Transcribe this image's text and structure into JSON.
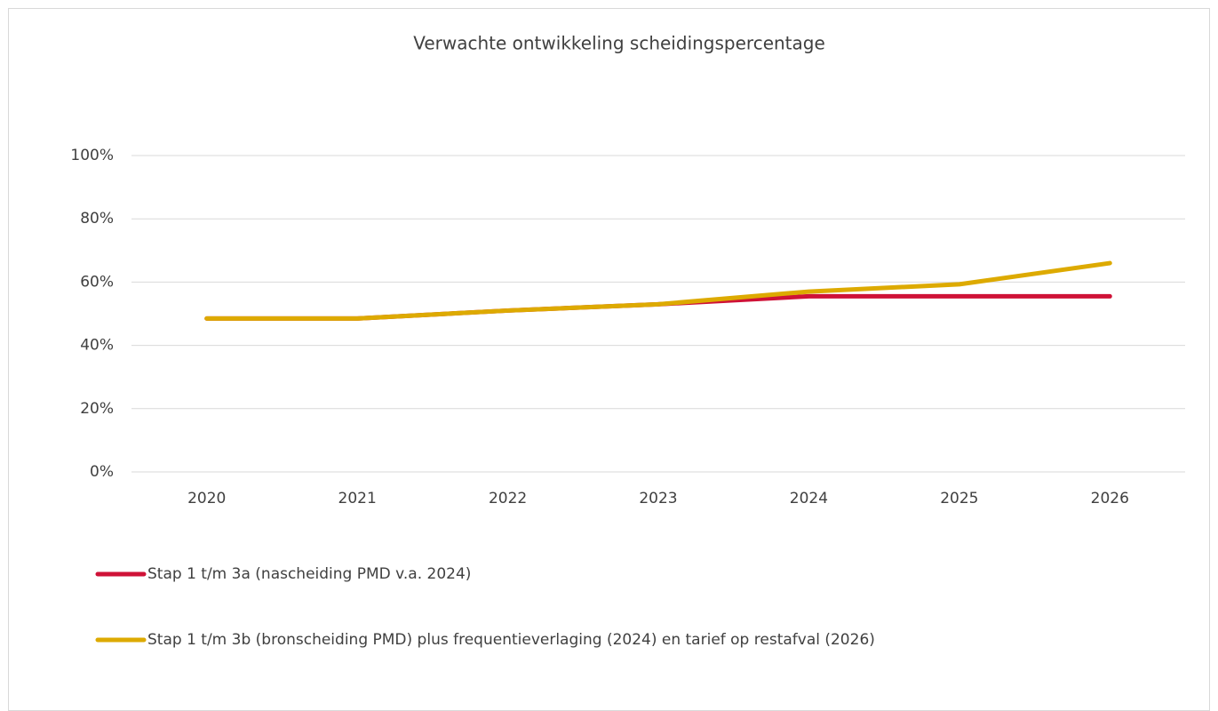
{
  "chart_data": {
    "type": "line",
    "title": "Verwachte ontwikkeling scheidingspercentage",
    "categories": [
      "2020",
      "2021",
      "2022",
      "2023",
      "2024",
      "2025",
      "2026"
    ],
    "series": [
      {
        "name": "Stap 1 t/m 3a (nascheiding PMD v.a. 2024)",
        "color": "#cf1237",
        "values": [
          48.5,
          48.5,
          51,
          53,
          55.5,
          55.5,
          55.5
        ]
      },
      {
        "name": "Stap 1 t/m 3b (bronscheiding PMD) plus frequentieverlaging (2024) en tarief op restafval (2026)",
        "color": "#ddaa00",
        "values": [
          48.5,
          48.5,
          51,
          53,
          57,
          59.3,
          66
        ]
      }
    ],
    "ylim": [
      0,
      100
    ],
    "yticks": [
      {
        "value": 0,
        "label": "0%"
      },
      {
        "value": 20,
        "label": "20%"
      },
      {
        "value": 40,
        "label": "40%"
      },
      {
        "value": 60,
        "label": "60%"
      },
      {
        "value": 80,
        "label": "80%"
      },
      {
        "value": 100,
        "label": "100%"
      }
    ],
    "grid": true,
    "legend": "bottom"
  }
}
